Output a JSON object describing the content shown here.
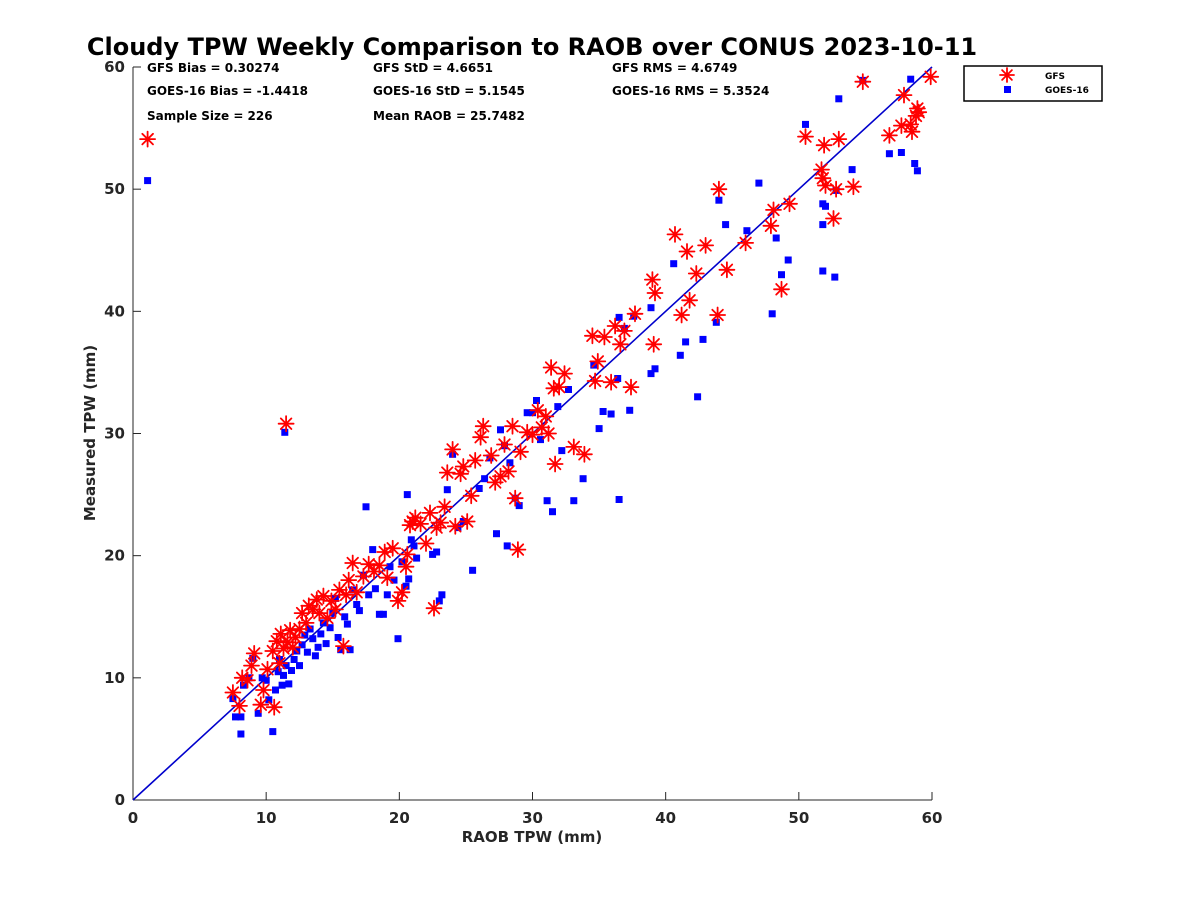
{
  "chart_data": {
    "type": "scatter",
    "title": "Cloudy TPW Weekly Comparison to RAOB over CONUS 2023-10-11",
    "xlabel": "RAOB TPW (mm)",
    "ylabel": "Measured TPW (mm)",
    "xlim": [
      0,
      60
    ],
    "ylim": [
      0,
      60
    ],
    "xticks": [
      "0",
      "10",
      "20",
      "30",
      "40",
      "50",
      "60"
    ],
    "yticks": [
      "0",
      "10",
      "20",
      "30",
      "40",
      "50",
      "60"
    ],
    "grid": false,
    "legend_position": "outside-top-right",
    "reference_line": {
      "x": [
        0,
        60
      ],
      "y": [
        0,
        60
      ],
      "color": "#0000cc"
    },
    "stats": {
      "gfs_bias": "GFS Bias = 0.30274",
      "goes_bias": "GOES-16 Bias = -1.4418",
      "sample_size": "Sample Size = 226",
      "gfs_std": "GFS StD = 4.6651",
      "goes_std": "GOES-16 StD = 5.1545",
      "mean_raob": "Mean RAOB = 25.7482",
      "gfs_rms": "GFS RMS = 4.6749",
      "goes_rms": "GOES-16 RMS = 5.3524"
    },
    "series": [
      {
        "name": "GFS",
        "marker": "asterisk",
        "color": "#ff0000",
        "points": [
          [
            1.1,
            54.1
          ],
          [
            11.5,
            30.8
          ],
          [
            7.5,
            8.8
          ],
          [
            8.0,
            7.7
          ],
          [
            8.2,
            10.0
          ],
          [
            8.6,
            9.8
          ],
          [
            8.9,
            11.0
          ],
          [
            9.1,
            12.0
          ],
          [
            9.6,
            7.8
          ],
          [
            9.8,
            9.0
          ],
          [
            10.1,
            10.7
          ],
          [
            10.5,
            12.2
          ],
          [
            10.6,
            7.6
          ],
          [
            10.8,
            13.0
          ],
          [
            11.0,
            11.2
          ],
          [
            11.1,
            13.6
          ],
          [
            11.3,
            12.4
          ],
          [
            11.6,
            12.9
          ],
          [
            11.8,
            13.9
          ],
          [
            12.0,
            12.5
          ],
          [
            12.2,
            13.3
          ],
          [
            12.5,
            14.0
          ],
          [
            12.7,
            15.3
          ],
          [
            13.0,
            14.5
          ],
          [
            13.2,
            15.9
          ],
          [
            13.5,
            15.6
          ],
          [
            13.8,
            16.4
          ],
          [
            14.0,
            15.3
          ],
          [
            14.3,
            16.7
          ],
          [
            14.6,
            14.9
          ],
          [
            14.9,
            16.3
          ],
          [
            15.2,
            15.6
          ],
          [
            15.5,
            17.2
          ],
          [
            15.8,
            12.6
          ],
          [
            16.0,
            16.8
          ],
          [
            16.2,
            18.0
          ],
          [
            16.5,
            19.4
          ],
          [
            16.8,
            17.0
          ],
          [
            17.3,
            18.3
          ],
          [
            17.7,
            19.3
          ],
          [
            18.1,
            18.7
          ],
          [
            18.5,
            19.2
          ],
          [
            18.9,
            20.3
          ],
          [
            19.1,
            18.2
          ],
          [
            19.5,
            20.6
          ],
          [
            19.9,
            16.3
          ],
          [
            20.2,
            17.0
          ],
          [
            20.5,
            19.1
          ],
          [
            20.6,
            20.1
          ],
          [
            20.8,
            22.5
          ],
          [
            21.0,
            22.8
          ],
          [
            21.2,
            23.1
          ],
          [
            21.6,
            22.6
          ],
          [
            22.0,
            21.0
          ],
          [
            22.3,
            23.5
          ],
          [
            22.6,
            15.7
          ],
          [
            22.8,
            22.3
          ],
          [
            23.1,
            22.7
          ],
          [
            23.4,
            24.0
          ],
          [
            23.6,
            26.8
          ],
          [
            24.0,
            28.7
          ],
          [
            24.2,
            22.4
          ],
          [
            24.6,
            26.7
          ],
          [
            24.8,
            27.3
          ],
          [
            25.1,
            22.8
          ],
          [
            25.4,
            24.9
          ],
          [
            25.7,
            27.8
          ],
          [
            26.1,
            29.7
          ],
          [
            26.3,
            30.6
          ],
          [
            26.9,
            28.2
          ],
          [
            27.2,
            26.0
          ],
          [
            27.6,
            26.5
          ],
          [
            27.9,
            29.1
          ],
          [
            28.2,
            26.9
          ],
          [
            28.5,
            30.6
          ],
          [
            28.7,
            24.7
          ],
          [
            28.9,
            20.5
          ],
          [
            29.1,
            28.5
          ],
          [
            29.6,
            30.1
          ],
          [
            30.0,
            29.9
          ],
          [
            30.4,
            31.9
          ],
          [
            30.7,
            30.5
          ],
          [
            31.0,
            31.4
          ],
          [
            31.2,
            30.0
          ],
          [
            31.4,
            35.4
          ],
          [
            31.6,
            33.7
          ],
          [
            31.7,
            27.5
          ],
          [
            32.0,
            33.8
          ],
          [
            32.4,
            34.9
          ],
          [
            33.1,
            28.9
          ],
          [
            33.9,
            28.3
          ],
          [
            34.5,
            38.0
          ],
          [
            34.7,
            34.3
          ],
          [
            34.9,
            35.9
          ],
          [
            35.4,
            37.9
          ],
          [
            35.9,
            34.2
          ],
          [
            36.2,
            38.8
          ],
          [
            36.6,
            37.3
          ],
          [
            36.9,
            38.4
          ],
          [
            37.4,
            33.8
          ],
          [
            37.7,
            39.8
          ],
          [
            39.0,
            42.6
          ],
          [
            39.1,
            37.3
          ],
          [
            39.2,
            41.5
          ],
          [
            40.7,
            46.3
          ],
          [
            41.2,
            39.7
          ],
          [
            41.6,
            44.9
          ],
          [
            41.8,
            40.9
          ],
          [
            42.3,
            43.1
          ],
          [
            43.0,
            45.4
          ],
          [
            43.9,
            39.7
          ],
          [
            44.0,
            50.0
          ],
          [
            44.6,
            43.4
          ],
          [
            46.0,
            45.6
          ],
          [
            47.9,
            47.0
          ],
          [
            48.1,
            48.3
          ],
          [
            48.7,
            41.8
          ],
          [
            49.3,
            48.8
          ],
          [
            50.5,
            54.3
          ],
          [
            51.7,
            51.6
          ],
          [
            51.8,
            50.9
          ],
          [
            51.9,
            53.6
          ],
          [
            52.0,
            50.3
          ],
          [
            52.6,
            47.6
          ],
          [
            52.8,
            50.0
          ],
          [
            53.0,
            54.1
          ],
          [
            54.1,
            50.2
          ],
          [
            54.8,
            58.8
          ],
          [
            56.8,
            54.4
          ],
          [
            57.7,
            55.2
          ],
          [
            57.9,
            57.7
          ],
          [
            58.4,
            55.3
          ],
          [
            58.5,
            54.7
          ],
          [
            58.8,
            56.0
          ],
          [
            58.9,
            56.6
          ],
          [
            59.0,
            56.3
          ],
          [
            59.9,
            59.2
          ]
        ]
      },
      {
        "name": "GOES-16",
        "marker": "square",
        "color": "#0000ff",
        "points": [
          [
            1.1,
            50.7
          ],
          [
            11.4,
            30.1
          ],
          [
            7.5,
            8.3
          ],
          [
            7.7,
            6.8
          ],
          [
            8.1,
            6.8
          ],
          [
            8.1,
            5.4
          ],
          [
            8.3,
            9.4
          ],
          [
            8.7,
            10.0
          ],
          [
            9.0,
            11.6
          ],
          [
            9.4,
            7.1
          ],
          [
            9.7,
            10.0
          ],
          [
            10.0,
            9.8
          ],
          [
            10.2,
            8.2
          ],
          [
            10.5,
            5.6
          ],
          [
            10.7,
            9.0
          ],
          [
            10.9,
            10.5
          ],
          [
            11.0,
            11.5
          ],
          [
            11.2,
            9.4
          ],
          [
            11.3,
            10.2
          ],
          [
            11.5,
            11.0
          ],
          [
            11.7,
            9.5
          ],
          [
            11.9,
            10.6
          ],
          [
            12.1,
            11.5
          ],
          [
            12.3,
            12.2
          ],
          [
            12.5,
            11.0
          ],
          [
            12.7,
            12.7
          ],
          [
            12.9,
            13.5
          ],
          [
            13.1,
            12.1
          ],
          [
            13.3,
            14.0
          ],
          [
            13.5,
            13.2
          ],
          [
            13.7,
            11.8
          ],
          [
            13.9,
            12.5
          ],
          [
            14.1,
            13.6
          ],
          [
            14.3,
            14.5
          ],
          [
            14.5,
            12.8
          ],
          [
            14.8,
            14.1
          ],
          [
            15.0,
            15.3
          ],
          [
            15.2,
            16.5
          ],
          [
            15.4,
            13.3
          ],
          [
            15.6,
            12.3
          ],
          [
            15.9,
            15.0
          ],
          [
            16.1,
            14.4
          ],
          [
            16.3,
            12.3
          ],
          [
            16.5,
            17.2
          ],
          [
            16.8,
            16.0
          ],
          [
            17.0,
            15.5
          ],
          [
            17.3,
            18.4
          ],
          [
            17.5,
            24.0
          ],
          [
            17.7,
            16.8
          ],
          [
            18.0,
            20.5
          ],
          [
            18.2,
            17.3
          ],
          [
            18.5,
            15.2
          ],
          [
            18.8,
            15.2
          ],
          [
            19.1,
            16.8
          ],
          [
            19.3,
            19.1
          ],
          [
            19.6,
            18.0
          ],
          [
            19.9,
            13.2
          ],
          [
            20.2,
            19.5
          ],
          [
            20.5,
            17.5
          ],
          [
            20.7,
            18.1
          ],
          [
            20.9,
            21.3
          ],
          [
            21.1,
            20.8
          ],
          [
            21.3,
            19.8
          ],
          [
            20.6,
            25.0
          ],
          [
            22.5,
            20.1
          ],
          [
            22.8,
            20.3
          ],
          [
            23.0,
            16.3
          ],
          [
            23.2,
            16.8
          ],
          [
            23.6,
            25.4
          ],
          [
            24.0,
            28.3
          ],
          [
            24.4,
            22.3
          ],
          [
            24.8,
            22.8
          ],
          [
            25.5,
            18.8
          ],
          [
            26.0,
            25.5
          ],
          [
            26.4,
            26.3
          ],
          [
            26.8,
            28.0
          ],
          [
            27.3,
            21.8
          ],
          [
            27.6,
            30.3
          ],
          [
            27.9,
            29.0
          ],
          [
            28.1,
            20.8
          ],
          [
            28.3,
            27.6
          ],
          [
            28.7,
            24.7
          ],
          [
            29.0,
            24.1
          ],
          [
            29.6,
            31.7
          ],
          [
            30.0,
            31.7
          ],
          [
            30.3,
            32.7
          ],
          [
            30.6,
            29.5
          ],
          [
            31.1,
            24.5
          ],
          [
            31.5,
            23.6
          ],
          [
            31.9,
            32.2
          ],
          [
            32.2,
            28.6
          ],
          [
            32.7,
            33.6
          ],
          [
            33.1,
            24.5
          ],
          [
            33.8,
            26.3
          ],
          [
            34.6,
            35.6
          ],
          [
            35.0,
            30.4
          ],
          [
            35.3,
            31.8
          ],
          [
            35.9,
            31.6
          ],
          [
            36.4,
            34.5
          ],
          [
            36.5,
            39.5
          ],
          [
            36.5,
            24.6
          ],
          [
            36.9,
            38.6
          ],
          [
            37.3,
            31.9
          ],
          [
            37.6,
            39.6
          ],
          [
            38.9,
            40.3
          ],
          [
            39.2,
            35.3
          ],
          [
            38.9,
            34.9
          ],
          [
            40.6,
            43.9
          ],
          [
            41.1,
            36.4
          ],
          [
            41.5,
            37.5
          ],
          [
            42.4,
            33.0
          ],
          [
            42.8,
            37.7
          ],
          [
            43.8,
            39.1
          ],
          [
            44.0,
            49.1
          ],
          [
            44.5,
            47.1
          ],
          [
            46.1,
            46.6
          ],
          [
            47.0,
            50.5
          ],
          [
            48.0,
            39.8
          ],
          [
            48.3,
            46.0
          ],
          [
            48.7,
            43.0
          ],
          [
            49.2,
            44.2
          ],
          [
            50.5,
            55.3
          ],
          [
            51.8,
            48.8
          ],
          [
            51.8,
            47.1
          ],
          [
            51.8,
            43.3
          ],
          [
            52.0,
            48.6
          ],
          [
            52.7,
            42.8
          ],
          [
            52.8,
            49.9
          ],
          [
            53.0,
            57.4
          ],
          [
            54.0,
            51.6
          ],
          [
            54.8,
            58.9
          ],
          [
            56.8,
            52.9
          ],
          [
            57.7,
            53.0
          ],
          [
            58.4,
            59.0
          ],
          [
            58.7,
            52.1
          ],
          [
            58.9,
            51.5
          ]
        ]
      }
    ]
  }
}
